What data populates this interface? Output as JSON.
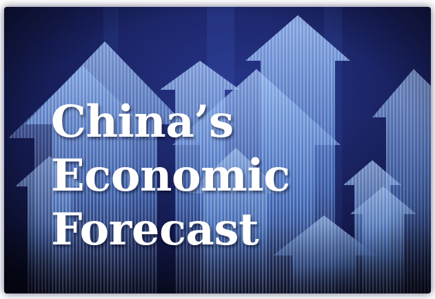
{
  "title": {
    "line1": "China’s",
    "line2": "Economic",
    "line3": "Forecast"
  },
  "icons": [
    "upward-arrows-background"
  ],
  "colors": {
    "background_dark": "#0b1030",
    "background_mid": "#1c2a78",
    "arrow_light": "#8fb8ff",
    "arrow_mid": "#3f6fd6",
    "title_text": "#ffffff"
  }
}
